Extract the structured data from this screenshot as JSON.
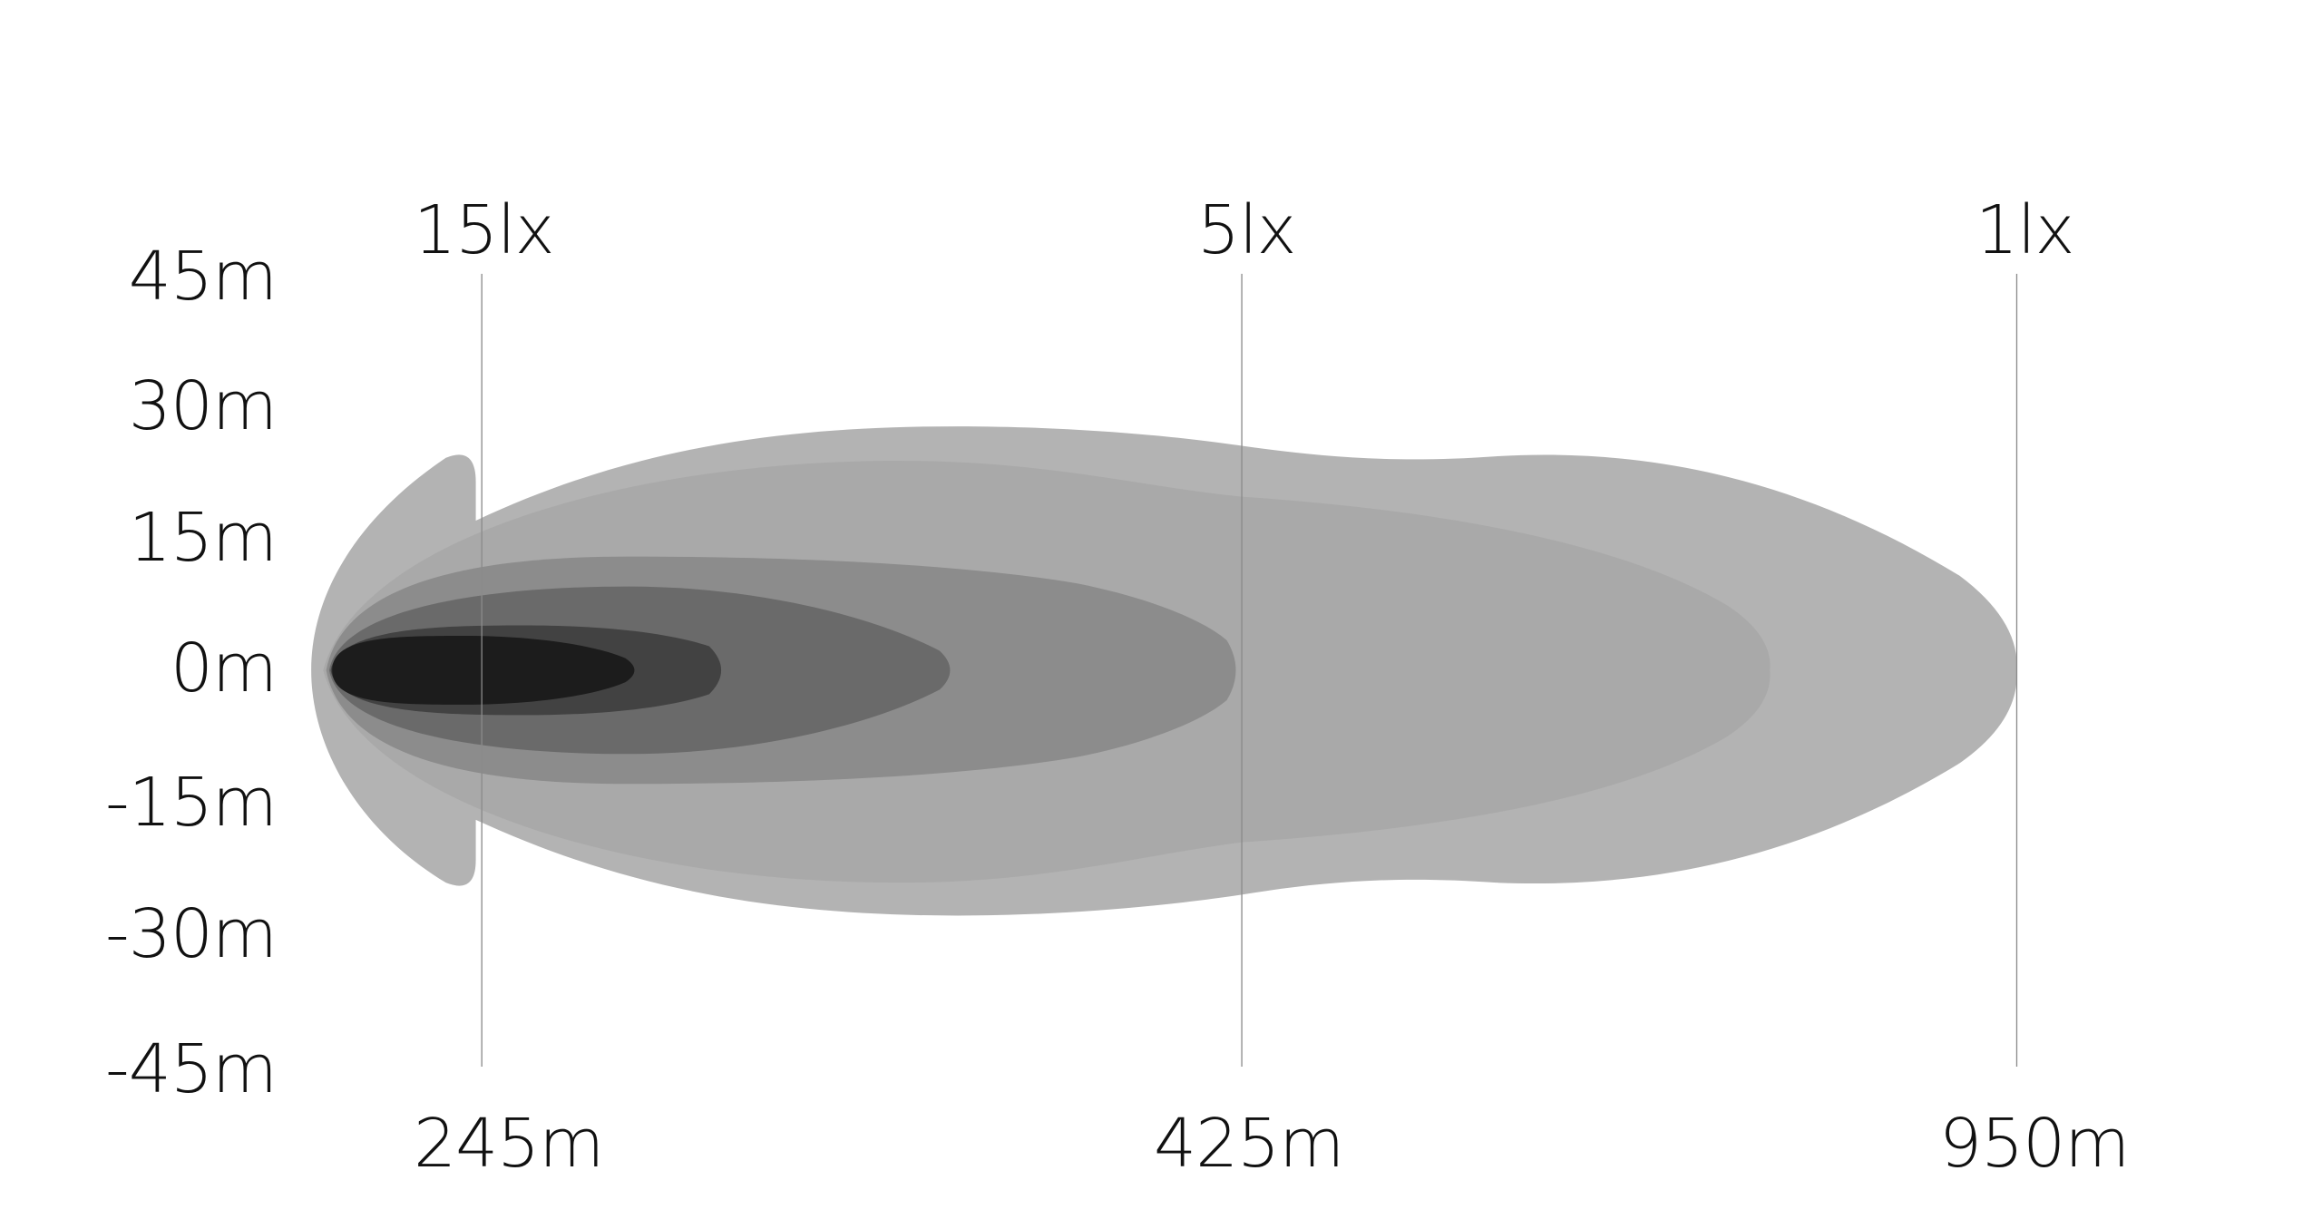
{
  "chart_data": {
    "type": "area",
    "description_of_marks": "nested beam illumination isolux contours",
    "y_ticks": [
      "45m",
      "30m",
      "15m",
      "0m",
      "-15m",
      "-30m",
      "-45m"
    ],
    "ylim": [
      -45,
      45
    ],
    "markers": [
      {
        "lux_label": "15lx",
        "distance_label": "245m"
      },
      {
        "lux_label": "5lx",
        "distance_label": "425m"
      },
      {
        "lux_label": "1lx",
        "distance_label": "950m"
      }
    ],
    "grid": false,
    "legend": "none",
    "colors": {
      "contour_1": "#b3b3b3",
      "contour_2": "#a9a9a9",
      "contour_3": "#8c8c8c",
      "contour_4": "#6a6a6a",
      "contour_5": "#424242",
      "contour_6": "#1c1c1c",
      "marker_line": "#8a8a8a"
    }
  }
}
